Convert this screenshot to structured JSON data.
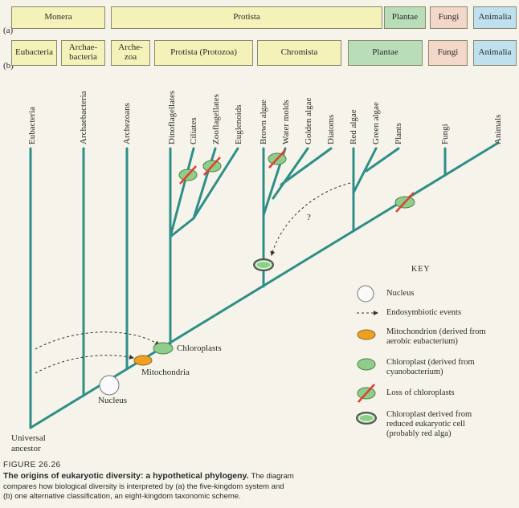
{
  "row_labels": {
    "a": "(a)",
    "b": "(b)"
  },
  "five_kingdom": {
    "monera": "Monera",
    "protista": "Protista",
    "plantae": "Plantae",
    "fungi": "Fungi",
    "animalia": "Animalia"
  },
  "eight_kingdom": {
    "eubacteria": "Eubacteria",
    "archaebacteria": "Archae-\nbacteria",
    "archezoa": "Arche-\nzoa",
    "protista": "Protista (Protozoa)",
    "chromista": "Chromista",
    "plantae": "Plantae",
    "fungi": "Fungi",
    "animalia": "Animalia"
  },
  "taxa": [
    "Eubacteria",
    "Archaebacteria",
    "Archezoans",
    "Dinoflagellates",
    "Ciliates",
    "Zooflagellates",
    "Euglenoids",
    "Brown algae",
    "Water molds",
    "Golden algae",
    "Diatoms",
    "Red algae",
    "Green algae",
    "Plants",
    "Fungi",
    "Animals"
  ],
  "tree_labels": {
    "universal_ancestor": "Universal\nancestor",
    "nucleus": "Nucleus",
    "mitochondria": "Mitochondria",
    "chloroplasts": "Chloroplasts",
    "question": "?"
  },
  "key": {
    "title": "KEY",
    "items": [
      "Nucleus",
      "Endosymbiotic events",
      "Mitochondrion (derived from\naerobic eubacterium)",
      "Chloroplast (derived from\ncyanobacterium)",
      "Loss of chloroplasts",
      "Chloroplast derived from\nreduced eukaryotic cell\n(probably red alga)"
    ]
  },
  "caption": {
    "figure": "FIGURE 26.26",
    "title": "The origins of eukaryotic diversity: a hypothetical phylogeny.",
    "lead": "The diagram",
    "body": "compares how biological diversity is interpreted by (a) the five-kingdom system and\n(b) one alternative classification, an eight-kingdom taxonomic scheme."
  },
  "colors": {
    "tree": "#2e8f88",
    "yellow_box": "#f4f2b8",
    "green_box": "#b9ddb8",
    "pink_box": "#f3d7c8",
    "blue_box": "#bfe0ef",
    "mitochondrion": "#f0a020",
    "chloroplast": "#8fce8a",
    "loss_slash": "#e0402c"
  }
}
